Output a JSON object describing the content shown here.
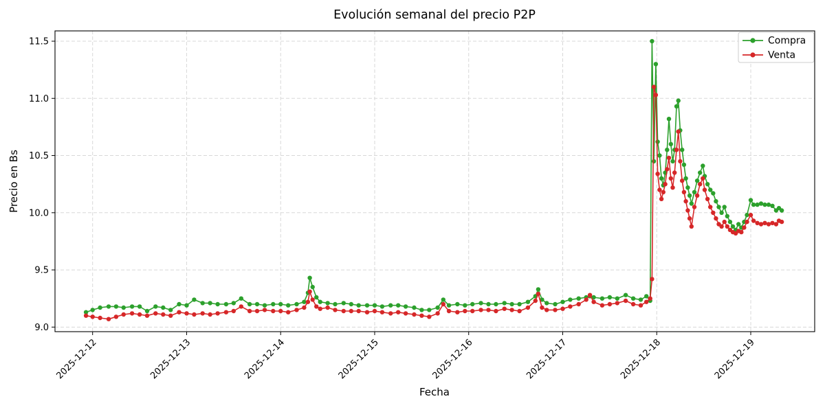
{
  "chart_data": {
    "type": "line",
    "title": "Evolución semanal del precio P2P",
    "xlabel": "Fecha",
    "ylabel": "Precio en Bs",
    "grid": true,
    "legend_position": "upper right",
    "x_unit": "days_since_2025-12-12_00:00",
    "xlim": [
      -0.4,
      7.68
    ],
    "ylim": [
      8.96,
      11.59
    ],
    "y_ticks": [
      9.0,
      9.5,
      10.0,
      10.5,
      11.0,
      11.5
    ],
    "x_ticks": {
      "positions": [
        0,
        1,
        2,
        3,
        4,
        5,
        6,
        7
      ],
      "labels": [
        "2025-12-12",
        "2025-12-13",
        "2025-12-14",
        "2025-12-15",
        "2025-12-16",
        "2025-12-17",
        "2025-12-18",
        "2025-12-19"
      ]
    },
    "x": [
      -0.07,
      0.0,
      0.08,
      0.17,
      0.25,
      0.33,
      0.42,
      0.5,
      0.58,
      0.67,
      0.75,
      0.83,
      0.92,
      1.0,
      1.08,
      1.17,
      1.25,
      1.33,
      1.42,
      1.5,
      1.58,
      1.67,
      1.75,
      1.83,
      1.92,
      2.0,
      2.08,
      2.17,
      2.25,
      2.29,
      2.31,
      2.34,
      2.38,
      2.42,
      2.5,
      2.58,
      2.67,
      2.75,
      2.83,
      2.92,
      3.0,
      3.08,
      3.17,
      3.25,
      3.33,
      3.42,
      3.5,
      3.58,
      3.67,
      3.73,
      3.79,
      3.88,
      3.96,
      4.04,
      4.13,
      4.21,
      4.29,
      4.38,
      4.46,
      4.54,
      4.63,
      4.71,
      4.74,
      4.78,
      4.83,
      4.92,
      5.0,
      5.08,
      5.17,
      5.25,
      5.29,
      5.33,
      5.42,
      5.5,
      5.58,
      5.67,
      5.75,
      5.83,
      5.89,
      5.93,
      5.95,
      5.97,
      5.99,
      6.01,
      6.03,
      6.05,
      6.07,
      6.09,
      6.11,
      6.13,
      6.15,
      6.17,
      6.19,
      6.21,
      6.23,
      6.25,
      6.27,
      6.29,
      6.31,
      6.33,
      6.35,
      6.37,
      6.4,
      6.43,
      6.46,
      6.49,
      6.51,
      6.54,
      6.57,
      6.6,
      6.63,
      6.66,
      6.69,
      6.72,
      6.75,
      6.78,
      6.81,
      6.84,
      6.87,
      6.9,
      6.93,
      6.96,
      7.0,
      7.03,
      7.07,
      7.11,
      7.15,
      7.19,
      7.23,
      7.27,
      7.3,
      7.33
    ],
    "series": [
      {
        "name": "Compra",
        "color": "#2ca02c",
        "marker": "o",
        "values": [
          9.13,
          9.15,
          9.17,
          9.18,
          9.18,
          9.17,
          9.18,
          9.18,
          9.14,
          9.18,
          9.17,
          9.15,
          9.2,
          9.19,
          9.24,
          9.21,
          9.21,
          9.2,
          9.2,
          9.21,
          9.25,
          9.2,
          9.2,
          9.19,
          9.2,
          9.2,
          9.19,
          9.2,
          9.22,
          9.3,
          9.43,
          9.35,
          9.26,
          9.22,
          9.21,
          9.2,
          9.21,
          9.2,
          9.19,
          9.19,
          9.19,
          9.18,
          9.19,
          9.19,
          9.18,
          9.17,
          9.15,
          9.15,
          9.17,
          9.24,
          9.19,
          9.2,
          9.19,
          9.2,
          9.21,
          9.2,
          9.2,
          9.21,
          9.2,
          9.2,
          9.22,
          9.27,
          9.33,
          9.24,
          9.21,
          9.2,
          9.22,
          9.24,
          9.25,
          9.26,
          9.27,
          9.26,
          9.25,
          9.26,
          9.25,
          9.28,
          9.25,
          9.24,
          9.27,
          9.23,
          11.5,
          10.45,
          11.3,
          10.62,
          10.5,
          10.3,
          10.24,
          10.35,
          10.55,
          10.82,
          10.6,
          10.45,
          10.55,
          10.93,
          10.98,
          10.72,
          10.55,
          10.42,
          10.3,
          10.22,
          10.15,
          10.08,
          10.18,
          10.28,
          10.35,
          10.41,
          10.32,
          10.25,
          10.2,
          10.17,
          10.1,
          10.05,
          10.0,
          10.05,
          9.97,
          9.92,
          9.88,
          9.85,
          9.9,
          9.87,
          9.92,
          9.98,
          10.11,
          10.07,
          10.07,
          10.08,
          10.07,
          10.07,
          10.06,
          10.02,
          10.04,
          10.02
        ]
      },
      {
        "name": "Venta",
        "color": "#d62728",
        "marker": "o",
        "values": [
          9.1,
          9.09,
          9.08,
          9.07,
          9.09,
          9.11,
          9.12,
          9.11,
          9.1,
          9.12,
          9.11,
          9.1,
          9.13,
          9.12,
          9.11,
          9.12,
          9.11,
          9.12,
          9.13,
          9.14,
          9.18,
          9.14,
          9.14,
          9.15,
          9.14,
          9.14,
          9.13,
          9.15,
          9.17,
          9.22,
          9.31,
          9.24,
          9.18,
          9.16,
          9.17,
          9.15,
          9.14,
          9.14,
          9.14,
          9.13,
          9.14,
          9.13,
          9.12,
          9.13,
          9.12,
          9.11,
          9.1,
          9.09,
          9.12,
          9.2,
          9.14,
          9.13,
          9.14,
          9.14,
          9.15,
          9.15,
          9.14,
          9.16,
          9.15,
          9.14,
          9.17,
          9.23,
          9.29,
          9.17,
          9.15,
          9.15,
          9.16,
          9.18,
          9.2,
          9.24,
          9.28,
          9.22,
          9.19,
          9.2,
          9.21,
          9.23,
          9.2,
          9.19,
          9.22,
          9.25,
          9.42,
          11.1,
          11.03,
          10.34,
          10.2,
          10.12,
          10.18,
          10.25,
          10.38,
          10.48,
          10.3,
          10.22,
          10.35,
          10.55,
          10.71,
          10.45,
          10.28,
          10.18,
          10.1,
          10.02,
          9.95,
          9.88,
          10.05,
          10.15,
          10.25,
          10.3,
          10.2,
          10.12,
          10.05,
          10.0,
          9.95,
          9.9,
          9.88,
          9.92,
          9.88,
          9.85,
          9.83,
          9.82,
          9.84,
          9.83,
          9.87,
          9.92,
          9.98,
          9.93,
          9.91,
          9.9,
          9.91,
          9.9,
          9.91,
          9.9,
          9.93,
          9.92
        ]
      }
    ],
    "style": {
      "grid_color": "#d8d8d8",
      "spine_color": "#000000",
      "legend_border_color": "#cccccc",
      "legend_bg": "#ffffff",
      "marker_radius": 3.2,
      "line_width": 1.6
    }
  }
}
